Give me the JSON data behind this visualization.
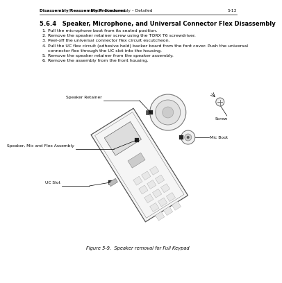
{
  "bg_color": "#ffffff",
  "header_left_bold": "Disassembly/Reassembly Procedures:",
  "header_left_normal": " Radio Disassembly – Detailed",
  "header_right": "5-13",
  "section_title": "5.6.4   Speaker, Microphone, and Universal Connector Flex Disassembly",
  "steps": [
    [
      "1.",
      "Pull the microphone boot from its seated position."
    ],
    [
      "2.",
      "Remove the speaker retainer screw using the TORX T6 screwdriver."
    ],
    [
      "3.",
      "Peel-off the universal connector flex circuit escutcheon."
    ],
    [
      "4.",
      "Pull the UC flex circuit (adhesive held) backer board from the font cover. Push the universal"
    ],
    [
      "",
      "connector flex through the UC slot into the housing."
    ],
    [
      "5.",
      "Remove the speaker retainer from the speaker assembly."
    ],
    [
      "6.",
      "Remove the assembly from the front housing."
    ]
  ],
  "figure_caption": "Figure 5-9.  Speaker removal for Full Keypad",
  "label_speaker_retainer": "Speaker Retainer",
  "label_screw": "Screw",
  "label_speaker_mic_flex": "Speaker, Mic and Flex Assembly",
  "label_mic_boot": "Mic Boot",
  "label_uc_slot": "UC Slot"
}
